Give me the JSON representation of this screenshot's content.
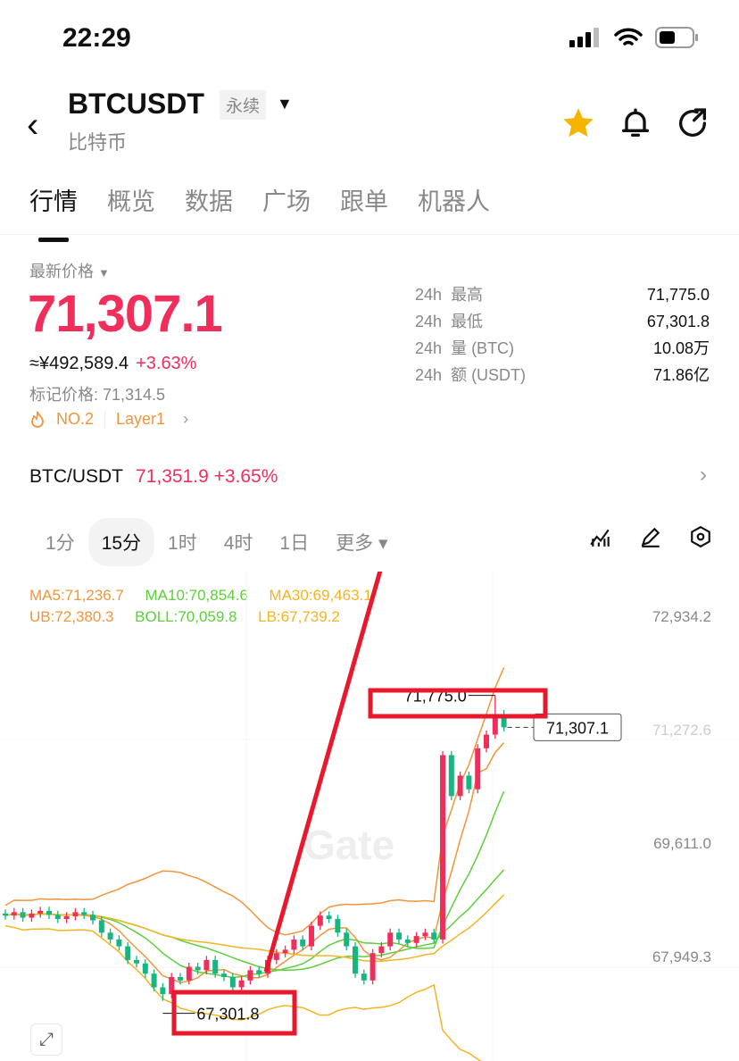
{
  "status": {
    "time": "22:29"
  },
  "header": {
    "symbol": "BTCUSDT",
    "contract_badge": "永续",
    "name": "比特币"
  },
  "tabs": [
    {
      "label": "行情",
      "active": true
    },
    {
      "label": "概览"
    },
    {
      "label": "数据"
    },
    {
      "label": "广场"
    },
    {
      "label": "跟单"
    },
    {
      "label": "机器人"
    }
  ],
  "ticker": {
    "latest_label": "最新价格",
    "last_price": "71,307.1",
    "cny": "≈¥492,589.4",
    "change": "+3.63%",
    "mark_price": "标记价格: 71,314.5",
    "rank": "NO.2",
    "sector": "Layer1"
  },
  "stats": [
    {
      "period": "24h",
      "label": "最高",
      "value": "71,775.0"
    },
    {
      "period": "24h",
      "label": "最低",
      "value": "67,301.8"
    },
    {
      "period": "24h",
      "label": "量 (BTC)",
      "value": "10.08万"
    },
    {
      "period": "24h",
      "label": "额 (USDT)",
      "value": "71.86亿"
    }
  ],
  "spot": {
    "pair": "BTC/USDT",
    "price": "71,351.9",
    "change": "+3.65%"
  },
  "timeframes": [
    {
      "label": "1分"
    },
    {
      "label": "15分",
      "selected": true
    },
    {
      "label": "1时"
    },
    {
      "label": "4时"
    },
    {
      "label": "1日"
    },
    {
      "label": "更多 ▾"
    }
  ],
  "indicators": {
    "ma5": "MA5:71,236.7",
    "ma10": "MA10:70,854.6",
    "ma30": "MA30:69,463.1",
    "ub": "UB:72,380.3",
    "boll": "BOLL:70,059.8",
    "lb": "LB:67,739.2"
  },
  "colors": {
    "up": "#ef2e5b",
    "down": "#17b581",
    "ma5": "#f0953a",
    "ma10": "#5ccf3a",
    "ma30": "#f3b421",
    "accent": "#e8192b"
  },
  "watermark": "Gate",
  "chart_data": {
    "type": "candlestick",
    "y_ticks": [
      "72,934.2",
      "71,272.6",
      "69,611.0",
      "67,949.3"
    ],
    "ylim": [
      66900,
      73300
    ],
    "closes": [
      68550,
      68600,
      68520,
      68580,
      68620,
      68560,
      68500,
      68540,
      68600,
      68560,
      68480,
      68300,
      68200,
      68100,
      67900,
      67850,
      67700,
      67500,
      67400,
      67650,
      67600,
      67800,
      67750,
      67900,
      67700,
      67650,
      67500,
      67600,
      67750,
      67700,
      67900,
      68000,
      68050,
      68200,
      68100,
      68400,
      68550,
      68500,
      68300,
      68100,
      67700,
      67600,
      68000,
      68100,
      68300,
      68200,
      68150,
      68250,
      68300,
      68200,
      70900,
      70300,
      70600,
      70400,
      71000,
      71200,
      71500,
      71307.1
    ],
    "high_label": "71,775.0",
    "high": 71775.0,
    "low_label": "67,301.8",
    "low": 67301.8,
    "last_price_label": "71,307.1",
    "last": 71307.1
  }
}
